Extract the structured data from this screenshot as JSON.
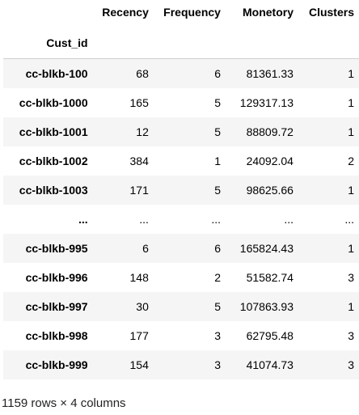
{
  "table": {
    "columns": [
      "Recency",
      "Frequency",
      "Monetory",
      "Clusters"
    ],
    "index_name": "Cust_id",
    "rows": [
      {
        "id": "cc-blkb-100",
        "recency": "68",
        "frequency": "6",
        "monetory": "81361.33",
        "clusters": "1"
      },
      {
        "id": "cc-blkb-1000",
        "recency": "165",
        "frequency": "5",
        "monetory": "129317.13",
        "clusters": "1"
      },
      {
        "id": "cc-blkb-1001",
        "recency": "12",
        "frequency": "5",
        "monetory": "88809.72",
        "clusters": "1"
      },
      {
        "id": "cc-blkb-1002",
        "recency": "384",
        "frequency": "1",
        "monetory": "24092.04",
        "clusters": "2"
      },
      {
        "id": "cc-blkb-1003",
        "recency": "171",
        "frequency": "5",
        "monetory": "98625.66",
        "clusters": "1"
      },
      {
        "id": "...",
        "recency": "...",
        "frequency": "...",
        "monetory": "...",
        "clusters": "..."
      },
      {
        "id": "cc-blkb-995",
        "recency": "6",
        "frequency": "6",
        "monetory": "165824.43",
        "clusters": "1"
      },
      {
        "id": "cc-blkb-996",
        "recency": "148",
        "frequency": "2",
        "monetory": "51582.74",
        "clusters": "3"
      },
      {
        "id": "cc-blkb-997",
        "recency": "30",
        "frequency": "5",
        "monetory": "107863.93",
        "clusters": "1"
      },
      {
        "id": "cc-blkb-998",
        "recency": "177",
        "frequency": "3",
        "monetory": "62795.48",
        "clusters": "3"
      },
      {
        "id": "cc-blkb-999",
        "recency": "154",
        "frequency": "3",
        "monetory": "41074.73",
        "clusters": "3"
      }
    ],
    "footer": "1159 rows × 4 columns"
  },
  "colors": {
    "stripe": "#f5f5f5",
    "header_rule": "#cfcfcf"
  }
}
